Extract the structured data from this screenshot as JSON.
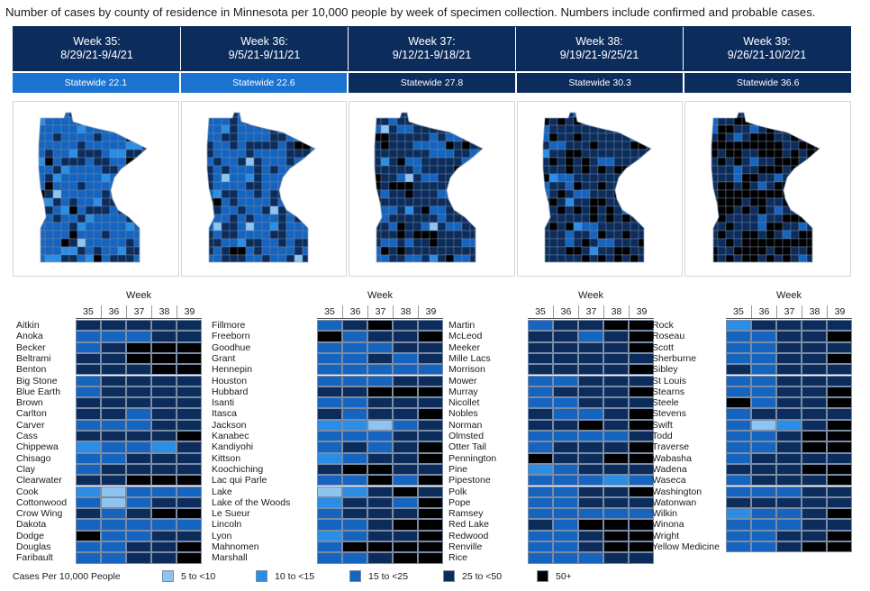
{
  "title": "Number of cases by county of residence in Minnesota per 10,000 people by week of specimen collection. Numbers include confirmed and probable cases.",
  "weeks": [
    {
      "label": "Week 35:",
      "range": "8/29/21-9/4/21",
      "statewide": "Statewide 22.1",
      "sw_color": "#1a73d0"
    },
    {
      "label": "Week 36:",
      "range": "9/5/21-9/11/21",
      "statewide": "Statewide 22.6",
      "sw_color": "#1a73d0"
    },
    {
      "label": "Week 37:",
      "range": "9/12/21-9/18/21",
      "statewide": "Statewide 27.8",
      "sw_color": "#0c2d5c"
    },
    {
      "label": "Week 38:",
      "range": "9/19/21-9/25/21",
      "statewide": "Statewide 30.3",
      "sw_color": "#0c2d5c"
    },
    {
      "label": "Week 39:",
      "range": "9/26/21-10/2/21",
      "statewide": "Statewide 36.6",
      "sw_color": "#0c2d5c"
    }
  ],
  "legend": {
    "title": "Cases Per 10,000 People",
    "items": [
      {
        "label": "5 to <10",
        "color": "#8fc3f0"
      },
      {
        "label": "10 to <15",
        "color": "#2a8ee6"
      },
      {
        "label": "15  to <25",
        "color": "#1565c0"
      },
      {
        "label": "25 to <50",
        "color": "#0c2d5c"
      },
      {
        "label": "50+",
        "color": "#000000"
      }
    ]
  },
  "chart_data": {
    "type": "heatmap",
    "week_axis_title": "Week",
    "x": [
      "35",
      "36",
      "37",
      "38",
      "39"
    ],
    "categories_note": "levels: 1 = 5 to <10, 2 = 10 to <15, 3 = 15 to <25, 4 = 25 to <50, 5 = 50+",
    "panels": [
      {
        "counties": [
          {
            "name": "Aitkin",
            "levels": [
              4,
              4,
              4,
              4,
              4
            ]
          },
          {
            "name": "Anoka",
            "levels": [
              3,
              3,
              3,
              4,
              4
            ]
          },
          {
            "name": "Becker",
            "levels": [
              3,
              4,
              5,
              5,
              5
            ]
          },
          {
            "name": "Beltrami",
            "levels": [
              4,
              4,
              5,
              5,
              5
            ]
          },
          {
            "name": "Benton",
            "levels": [
              4,
              4,
              4,
              5,
              5
            ]
          },
          {
            "name": "Big Stone",
            "levels": [
              3,
              4,
              4,
              4,
              4
            ]
          },
          {
            "name": "Blue Earth",
            "levels": [
              3,
              4,
              4,
              4,
              4
            ]
          },
          {
            "name": "Brown",
            "levels": [
              4,
              4,
              4,
              4,
              4
            ]
          },
          {
            "name": "Carlton",
            "levels": [
              4,
              4,
              3,
              4,
              4
            ]
          },
          {
            "name": "Carver",
            "levels": [
              3,
              3,
              3,
              4,
              4
            ]
          },
          {
            "name": "Cass",
            "levels": [
              4,
              4,
              4,
              4,
              5
            ]
          },
          {
            "name": "Chippewa",
            "levels": [
              2,
              3,
              3,
              2,
              4
            ]
          },
          {
            "name": "Chisago",
            "levels": [
              3,
              3,
              4,
              4,
              4
            ]
          },
          {
            "name": "Clay",
            "levels": [
              3,
              4,
              4,
              4,
              4
            ]
          },
          {
            "name": "Clearwater",
            "levels": [
              4,
              4,
              5,
              5,
              5
            ]
          },
          {
            "name": "Cook",
            "levels": [
              2,
              1,
              3,
              3,
              3
            ]
          },
          {
            "name": "Cottonwood",
            "levels": [
              3,
              1,
              3,
              4,
              4
            ]
          },
          {
            "name": "Crow Wing",
            "levels": [
              4,
              3,
              4,
              5,
              5
            ]
          },
          {
            "name": "Dakota",
            "levels": [
              3,
              3,
              3,
              3,
              3
            ]
          },
          {
            "name": "Dodge",
            "levels": [
              5,
              3,
              3,
              4,
              4
            ]
          },
          {
            "name": "Douglas",
            "levels": [
              3,
              3,
              4,
              4,
              5
            ]
          },
          {
            "name": "Faribault",
            "levels": [
              3,
              3,
              4,
              4,
              5
            ]
          }
        ]
      },
      {
        "counties": [
          {
            "name": "Fillmore",
            "levels": [
              3,
              4,
              5,
              4,
              4
            ]
          },
          {
            "name": "Freeborn",
            "levels": [
              5,
              3,
              4,
              4,
              5
            ]
          },
          {
            "name": "Goodhue",
            "levels": [
              3,
              3,
              3,
              4,
              4
            ]
          },
          {
            "name": "Grant",
            "levels": [
              3,
              3,
              4,
              3,
              4
            ]
          },
          {
            "name": "Hennepin",
            "levels": [
              3,
              3,
              3,
              3,
              3
            ]
          },
          {
            "name": "Houston",
            "levels": [
              3,
              3,
              3,
              4,
              4
            ]
          },
          {
            "name": "Hubbard",
            "levels": [
              4,
              4,
              5,
              5,
              5
            ]
          },
          {
            "name": "Isanti",
            "levels": [
              3,
              3,
              4,
              4,
              4
            ]
          },
          {
            "name": "Itasca",
            "levels": [
              4,
              3,
              4,
              4,
              5
            ]
          },
          {
            "name": "Jackson",
            "levels": [
              2,
              2,
              1,
              3,
              4
            ]
          },
          {
            "name": "Kanabec",
            "levels": [
              3,
              3,
              3,
              4,
              4
            ]
          },
          {
            "name": "Kandiyohi",
            "levels": [
              3,
              4,
              3,
              4,
              5
            ]
          },
          {
            "name": "Kittson",
            "levels": [
              2,
              3,
              4,
              4,
              5
            ]
          },
          {
            "name": "Koochiching",
            "levels": [
              4,
              5,
              5,
              4,
              4
            ]
          },
          {
            "name": "Lac qui Parle",
            "levels": [
              3,
              3,
              5,
              3,
              5
            ]
          },
          {
            "name": "Lake",
            "levels": [
              1,
              2,
              4,
              5,
              4
            ]
          },
          {
            "name": "Lake of the Woods",
            "levels": [
              2,
              4,
              4,
              3,
              5
            ]
          },
          {
            "name": "Le Sueur",
            "levels": [
              3,
              4,
              4,
              4,
              5
            ]
          },
          {
            "name": "Lincoln",
            "levels": [
              3,
              3,
              4,
              5,
              5
            ]
          },
          {
            "name": "Lyon",
            "levels": [
              2,
              3,
              4,
              4,
              5
            ]
          },
          {
            "name": "Mahnomen",
            "levels": [
              3,
              5,
              5,
              5,
              5
            ]
          },
          {
            "name": "Marshall",
            "levels": [
              3,
              3,
              4,
              5,
              5
            ]
          }
        ]
      },
      {
        "counties": [
          {
            "name": "Martin",
            "levels": [
              3,
              4,
              4,
              5,
              5
            ]
          },
          {
            "name": "McLeod",
            "levels": [
              4,
              4,
              3,
              4,
              5
            ]
          },
          {
            "name": "Meeker",
            "levels": [
              4,
              4,
              4,
              4,
              5
            ]
          },
          {
            "name": "Mille Lacs",
            "levels": [
              4,
              4,
              4,
              4,
              4
            ]
          },
          {
            "name": "Morrison",
            "levels": [
              4,
              4,
              4,
              4,
              5
            ]
          },
          {
            "name": "Mower",
            "levels": [
              3,
              3,
              4,
              4,
              4
            ]
          },
          {
            "name": "Murray",
            "levels": [
              3,
              4,
              4,
              4,
              5
            ]
          },
          {
            "name": "Nicollet",
            "levels": [
              3,
              3,
              4,
              4,
              4
            ]
          },
          {
            "name": "Nobles",
            "levels": [
              4,
              3,
              3,
              4,
              5
            ]
          },
          {
            "name": "Norman",
            "levels": [
              4,
              4,
              5,
              4,
              5
            ]
          },
          {
            "name": "Olmsted",
            "levels": [
              3,
              3,
              3,
              3,
              4
            ]
          },
          {
            "name": "Otter Tail",
            "levels": [
              3,
              4,
              4,
              4,
              5
            ]
          },
          {
            "name": "Pennington",
            "levels": [
              5,
              4,
              4,
              5,
              5
            ]
          },
          {
            "name": "Pine",
            "levels": [
              2,
              3,
              4,
              4,
              4
            ]
          },
          {
            "name": "Pipestone",
            "levels": [
              3,
              3,
              3,
              2,
              3
            ]
          },
          {
            "name": "Polk",
            "levels": [
              3,
              3,
              4,
              4,
              5
            ]
          },
          {
            "name": "Pope",
            "levels": [
              3,
              3,
              4,
              4,
              4
            ]
          },
          {
            "name": "Ramsey",
            "levels": [
              3,
              3,
              3,
              3,
              3
            ]
          },
          {
            "name": "Red Lake",
            "levels": [
              4,
              3,
              5,
              5,
              5
            ]
          },
          {
            "name": "Redwood",
            "levels": [
              3,
              3,
              4,
              5,
              5
            ]
          },
          {
            "name": "Renville",
            "levels": [
              3,
              3,
              4,
              5,
              5
            ]
          },
          {
            "name": "Rice",
            "levels": [
              3,
              3,
              3,
              4,
              4
            ]
          }
        ]
      },
      {
        "counties": [
          {
            "name": "Rock",
            "levels": [
              2,
              4,
              4,
              4,
              4
            ]
          },
          {
            "name": "Roseau",
            "levels": [
              3,
              3,
              4,
              4,
              5
            ]
          },
          {
            "name": "Scott",
            "levels": [
              3,
              3,
              4,
              4,
              4
            ]
          },
          {
            "name": "Sherburne",
            "levels": [
              3,
              3,
              4,
              4,
              5
            ]
          },
          {
            "name": "Sibley",
            "levels": [
              4,
              3,
              4,
              4,
              4
            ]
          },
          {
            "name": "St Louis",
            "levels": [
              3,
              3,
              4,
              4,
              4
            ]
          },
          {
            "name": "Stearns",
            "levels": [
              3,
              3,
              4,
              4,
              5
            ]
          },
          {
            "name": "Steele",
            "levels": [
              5,
              3,
              4,
              4,
              5
            ]
          },
          {
            "name": "Stevens",
            "levels": [
              3,
              4,
              4,
              4,
              4
            ]
          },
          {
            "name": "Swift",
            "levels": [
              3,
              1,
              2,
              4,
              5
            ]
          },
          {
            "name": "Todd",
            "levels": [
              3,
              3,
              4,
              5,
              5
            ]
          },
          {
            "name": "Traverse",
            "levels": [
              3,
              3,
              4,
              5,
              5
            ]
          },
          {
            "name": "Wabasha",
            "levels": [
              3,
              4,
              4,
              4,
              4
            ]
          },
          {
            "name": "Wadena",
            "levels": [
              4,
              4,
              4,
              5,
              5
            ]
          },
          {
            "name": "Waseca",
            "levels": [
              3,
              4,
              4,
              4,
              5
            ]
          },
          {
            "name": "Washington",
            "levels": [
              3,
              3,
              3,
              4,
              4
            ]
          },
          {
            "name": "Watonwan",
            "levels": [
              4,
              4,
              4,
              4,
              4
            ]
          },
          {
            "name": "Wilkin",
            "levels": [
              2,
              3,
              3,
              4,
              5
            ]
          },
          {
            "name": "Winona",
            "levels": [
              3,
              3,
              3,
              4,
              4
            ]
          },
          {
            "name": "Wright",
            "levels": [
              3,
              3,
              4,
              4,
              5
            ]
          },
          {
            "name": "Yellow Medicine",
            "levels": [
              3,
              3,
              4,
              5,
              5
            ]
          }
        ]
      }
    ]
  }
}
